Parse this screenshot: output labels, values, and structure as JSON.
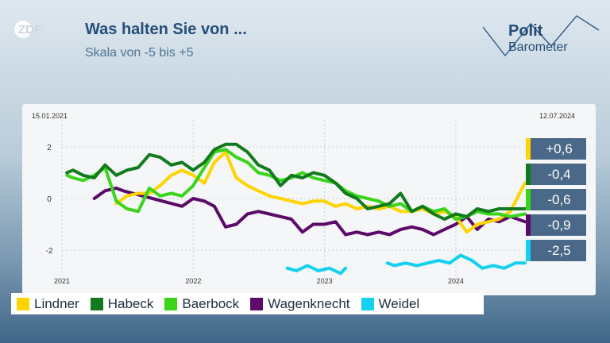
{
  "header": {
    "brand": "ZDF",
    "title": "Was halten Sie von ...",
    "subtitle": "Skala von -5 bis +5",
    "politbarometer_line1": "Polit",
    "politbarometer_line2": "Barometer"
  },
  "colors": {
    "lindner": "#ffd400",
    "habeck": "#117a1d",
    "baerbock": "#3ad41b",
    "wagenknecht": "#5c0a6a",
    "weidel": "#14d0f0"
  },
  "badges": [
    {
      "party": "lindner",
      "value": "+0,6"
    },
    {
      "party": "habeck",
      "value": "-0,4"
    },
    {
      "party": "baerbock",
      "value": "-0,6"
    },
    {
      "party": "wagenknecht",
      "value": "-0,9"
    },
    {
      "party": "weidel",
      "value": "-2,5"
    }
  ],
  "chart_data": {
    "type": "line",
    "start_date_label": "15.01.2021",
    "end_date_label": "12.07.2024",
    "x_ticks": [
      "2021",
      "2022",
      "2023",
      "2024"
    ],
    "y_ticks": [
      "2",
      "0",
      "-2"
    ],
    "ylim": [
      -3.2,
      3.0
    ],
    "grid": true,
    "series": [
      {
        "name": "Lindner",
        "key": "lindner",
        "points": [
          [
            "2021-06-01",
            -0.2
          ],
          [
            "2021-07-01",
            0.1
          ],
          [
            "2021-08-01",
            0.2
          ],
          [
            "2021-09-01",
            0.2
          ],
          [
            "2021-10-01",
            0.5
          ],
          [
            "2021-11-01",
            0.9
          ],
          [
            "2021-12-01",
            1.1
          ],
          [
            "2022-01-01",
            0.9
          ],
          [
            "2022-02-01",
            0.6
          ],
          [
            "2022-03-01",
            1.4
          ],
          [
            "2022-04-01",
            1.8
          ],
          [
            "2022-05-01",
            0.8
          ],
          [
            "2022-06-01",
            0.5
          ],
          [
            "2022-07-01",
            0.3
          ],
          [
            "2022-08-01",
            0.1
          ],
          [
            "2022-09-01",
            0.0
          ],
          [
            "2022-10-01",
            -0.1
          ],
          [
            "2022-11-01",
            -0.2
          ],
          [
            "2022-12-01",
            -0.1
          ],
          [
            "2023-01-01",
            -0.1
          ],
          [
            "2023-02-01",
            -0.3
          ],
          [
            "2023-03-01",
            -0.2
          ],
          [
            "2023-04-01",
            -0.4
          ],
          [
            "2023-05-01",
            -0.3
          ],
          [
            "2023-06-01",
            -0.4
          ],
          [
            "2023-07-01",
            -0.3
          ],
          [
            "2023-08-01",
            -0.5
          ],
          [
            "2023-09-01",
            -0.5
          ],
          [
            "2023-10-01",
            -0.4
          ],
          [
            "2023-11-01",
            -0.6
          ],
          [
            "2023-12-01",
            -0.5
          ],
          [
            "2024-01-01",
            -0.7
          ],
          [
            "2024-02-01",
            -1.3
          ],
          [
            "2024-03-01",
            -1.0
          ],
          [
            "2024-04-01",
            -0.9
          ],
          [
            "2024-05-01",
            -0.8
          ],
          [
            "2024-06-01",
            -0.5
          ],
          [
            "2024-07-12",
            0.6
          ]
        ]
      },
      {
        "name": "Habeck",
        "key": "habeck",
        "points": [
          [
            "2021-01-15",
            1.0
          ],
          [
            "2021-02-01",
            1.1
          ],
          [
            "2021-03-01",
            0.9
          ],
          [
            "2021-04-01",
            0.8
          ],
          [
            "2021-05-01",
            1.3
          ],
          [
            "2021-06-01",
            0.9
          ],
          [
            "2021-07-01",
            1.1
          ],
          [
            "2021-08-01",
            1.2
          ],
          [
            "2021-09-01",
            1.7
          ],
          [
            "2021-10-01",
            1.6
          ],
          [
            "2021-11-01",
            1.3
          ],
          [
            "2021-12-01",
            1.4
          ],
          [
            "2022-01-01",
            1.1
          ],
          [
            "2022-02-01",
            1.4
          ],
          [
            "2022-03-01",
            1.9
          ],
          [
            "2022-04-01",
            2.1
          ],
          [
            "2022-05-01",
            2.1
          ],
          [
            "2022-06-01",
            1.8
          ],
          [
            "2022-07-01",
            1.3
          ],
          [
            "2022-08-01",
            1.1
          ],
          [
            "2022-09-01",
            0.5
          ],
          [
            "2022-10-01",
            0.9
          ],
          [
            "2022-11-01",
            0.8
          ],
          [
            "2022-12-01",
            1.0
          ],
          [
            "2023-01-01",
            0.9
          ],
          [
            "2023-02-01",
            0.6
          ],
          [
            "2023-03-01",
            0.2
          ],
          [
            "2023-04-01",
            0.0
          ],
          [
            "2023-05-01",
            -0.4
          ],
          [
            "2023-06-01",
            -0.3
          ],
          [
            "2023-07-01",
            -0.2
          ],
          [
            "2023-08-01",
            0.2
          ],
          [
            "2023-09-01",
            -0.5
          ],
          [
            "2023-10-01",
            -0.3
          ],
          [
            "2023-11-01",
            -0.6
          ],
          [
            "2023-12-01",
            -0.8
          ],
          [
            "2024-01-01",
            -0.6
          ],
          [
            "2024-02-01",
            -0.7
          ],
          [
            "2024-03-01",
            -0.4
          ],
          [
            "2024-04-01",
            -0.5
          ],
          [
            "2024-05-01",
            -0.4
          ],
          [
            "2024-06-01",
            -0.4
          ],
          [
            "2024-07-12",
            -0.4
          ]
        ]
      },
      {
        "name": "Baerbock",
        "key": "baerbock",
        "points": [
          [
            "2021-01-15",
            0.9
          ],
          [
            "2021-02-01",
            0.8
          ],
          [
            "2021-03-01",
            0.7
          ],
          [
            "2021-04-01",
            0.9
          ],
          [
            "2021-05-01",
            1.2
          ],
          [
            "2021-06-01",
            -0.1
          ],
          [
            "2021-07-01",
            -0.4
          ],
          [
            "2021-08-01",
            -0.5
          ],
          [
            "2021-09-01",
            0.4
          ],
          [
            "2021-10-01",
            0.1
          ],
          [
            "2021-11-01",
            0.2
          ],
          [
            "2021-12-01",
            0.1
          ],
          [
            "2022-01-01",
            0.5
          ],
          [
            "2022-02-01",
            1.2
          ],
          [
            "2022-03-01",
            1.8
          ],
          [
            "2022-04-01",
            1.9
          ],
          [
            "2022-05-01",
            1.6
          ],
          [
            "2022-06-01",
            1.4
          ],
          [
            "2022-07-01",
            1.0
          ],
          [
            "2022-08-01",
            0.9
          ],
          [
            "2022-09-01",
            0.7
          ],
          [
            "2022-10-01",
            0.8
          ],
          [
            "2022-11-01",
            1.0
          ],
          [
            "2022-12-01",
            0.8
          ],
          [
            "2023-01-01",
            0.7
          ],
          [
            "2023-02-01",
            0.6
          ],
          [
            "2023-03-01",
            0.3
          ],
          [
            "2023-04-01",
            0.1
          ],
          [
            "2023-05-01",
            0.0
          ],
          [
            "2023-06-01",
            -0.1
          ],
          [
            "2023-07-01",
            -0.3
          ],
          [
            "2023-08-01",
            -0.2
          ],
          [
            "2023-09-01",
            -0.5
          ],
          [
            "2023-10-01",
            -0.3
          ],
          [
            "2023-11-01",
            -0.5
          ],
          [
            "2023-12-01",
            -0.4
          ],
          [
            "2024-01-01",
            -0.8
          ],
          [
            "2024-02-01",
            -0.7
          ],
          [
            "2024-03-01",
            -0.5
          ],
          [
            "2024-04-01",
            -0.6
          ],
          [
            "2024-05-01",
            -0.6
          ],
          [
            "2024-06-01",
            -0.7
          ],
          [
            "2024-07-12",
            -0.6
          ]
        ]
      },
      {
        "name": "Wagenknecht",
        "key": "wagenknecht",
        "points": [
          [
            "2021-04-01",
            0.0
          ],
          [
            "2021-05-01",
            0.3
          ],
          [
            "2021-06-01",
            0.4
          ],
          [
            "2021-06-20",
            0.3
          ],
          [
            "2021-12-01",
            -0.3
          ],
          [
            "2022-01-01",
            0.0
          ],
          [
            "2022-02-01",
            -0.1
          ],
          [
            "2022-03-01",
            -0.3
          ],
          [
            "2022-04-01",
            -1.1
          ],
          [
            "2022-05-01",
            -1.0
          ],
          [
            "2022-06-01",
            -0.6
          ],
          [
            "2022-07-01",
            -0.5
          ],
          [
            "2022-08-01",
            -0.6
          ],
          [
            "2022-09-01",
            -0.7
          ],
          [
            "2022-10-01",
            -0.8
          ],
          [
            "2022-11-01",
            -1.3
          ],
          [
            "2022-12-01",
            -1.0
          ],
          [
            "2023-01-01",
            -1.0
          ],
          [
            "2023-02-01",
            -0.9
          ],
          [
            "2023-03-01",
            -1.4
          ],
          [
            "2023-04-01",
            -1.3
          ],
          [
            "2023-05-01",
            -1.4
          ],
          [
            "2023-06-01",
            -1.3
          ],
          [
            "2023-07-01",
            -1.4
          ],
          [
            "2023-08-01",
            -1.2
          ],
          [
            "2023-09-01",
            -1.1
          ],
          [
            "2023-10-01",
            -1.2
          ],
          [
            "2023-11-01",
            -1.4
          ],
          [
            "2023-12-01",
            -1.2
          ],
          [
            "2024-01-01",
            -1.0
          ],
          [
            "2024-02-01",
            -0.7
          ],
          [
            "2024-03-01",
            -1.2
          ],
          [
            "2024-04-01",
            -0.8
          ],
          [
            "2024-05-01",
            -0.9
          ],
          [
            "2024-06-01",
            -0.7
          ],
          [
            "2024-07-12",
            -0.9
          ]
        ]
      },
      {
        "name": "Weidel",
        "key": "weidel",
        "points": [
          [
            "2022-09-20",
            -2.7
          ],
          [
            "2022-10-15",
            -2.8
          ],
          [
            "2022-11-15",
            -2.6
          ],
          [
            "2022-12-15",
            -2.8
          ],
          [
            "2023-01-15",
            -2.7
          ],
          [
            "2023-02-15",
            -2.9
          ],
          [
            "2023-03-01",
            -2.7
          ],
          [
            "2023-06-20",
            null
          ],
          [
            "2023-06-25",
            -2.5
          ],
          [
            "2023-07-15",
            -2.6
          ],
          [
            "2023-08-15",
            -2.5
          ],
          [
            "2023-09-15",
            -2.6
          ],
          [
            "2023-10-15",
            -2.5
          ],
          [
            "2023-11-15",
            -2.4
          ],
          [
            "2023-12-15",
            -2.5
          ],
          [
            "2024-01-15",
            -2.2
          ],
          [
            "2024-02-15",
            -2.4
          ],
          [
            "2024-03-15",
            -2.7
          ],
          [
            "2024-04-15",
            -2.6
          ],
          [
            "2024-05-15",
            -2.7
          ],
          [
            "2024-06-15",
            -2.5
          ],
          [
            "2024-07-12",
            -2.5
          ]
        ]
      }
    ]
  }
}
